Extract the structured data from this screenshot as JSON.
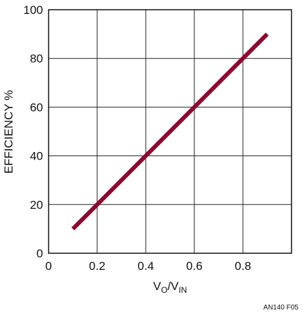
{
  "chart_data": {
    "type": "line",
    "title": "",
    "xlabel": {
      "main": "V",
      "sub1": "O",
      "sep": "/V",
      "sub2": "IN"
    },
    "ylabel": "EFFICIENCY %",
    "xlim": [
      0,
      1
    ],
    "ylim": [
      0,
      100
    ],
    "xticks": [
      0,
      0.2,
      0.4,
      0.6,
      0.8,
      1.0
    ],
    "xtick_labels": [
      "0",
      "0.2",
      "0.4",
      "0.6",
      "0.8",
      ""
    ],
    "yticks": [
      0,
      20,
      40,
      60,
      80,
      100
    ],
    "ytick_labels": [
      "0",
      "20",
      "40",
      "60",
      "80",
      "100"
    ],
    "grid": true,
    "series": [
      {
        "x": [
          0.1,
          0.9
        ],
        "y": [
          10,
          90
        ],
        "color": "#8b0a2e"
      }
    ],
    "figure_id": "AN140 F05"
  }
}
